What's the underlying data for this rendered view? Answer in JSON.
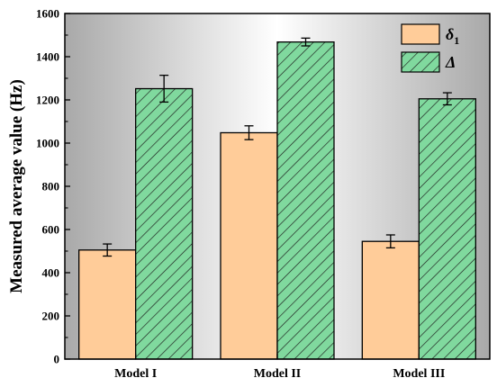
{
  "chart_data": {
    "type": "bar",
    "categories": [
      "Model I",
      "Model II",
      "Model III"
    ],
    "series": [
      {
        "name": "δ",
        "name_subscript": "1",
        "values": [
          505,
          1048,
          545
        ],
        "errors": [
          28,
          32,
          30
        ],
        "color": "#ffcc99",
        "pattern": "solid"
      },
      {
        "name": "Δ",
        "values": [
          1252,
          1468,
          1205
        ],
        "errors": [
          62,
          18,
          28
        ],
        "color": "#80d99e",
        "pattern": "diagonal-hatch"
      }
    ],
    "xlabel": "",
    "ylabel": "Measured average value (Hz)",
    "ylim": [
      0,
      1600
    ],
    "yticks": [
      0,
      200,
      400,
      600,
      800,
      1000,
      1200,
      1400,
      1600
    ],
    "grid": false,
    "legend_position": "top-right",
    "background": "gray-white-gray horizontal gradient"
  }
}
